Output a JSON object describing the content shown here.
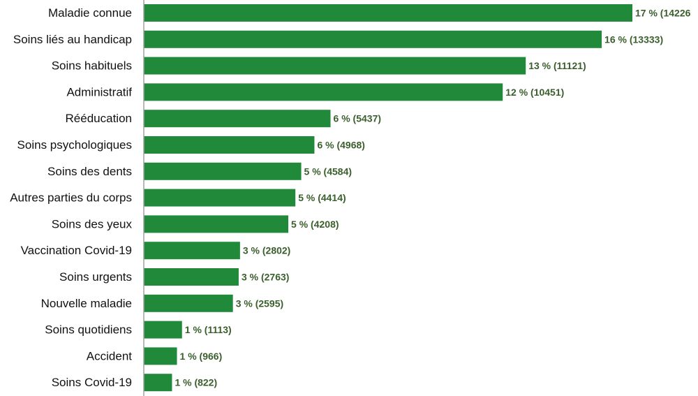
{
  "chart_data": {
    "type": "bar",
    "orientation": "horizontal",
    "title": "",
    "xlabel": "",
    "ylabel": "",
    "xlim": [
      0,
      14226
    ],
    "grid": false,
    "legend": "none",
    "bar_color": "#208a3a",
    "label_color": "#3a5f2c",
    "axis_color": "#a0a0a0",
    "categories": [
      "Maladie connue",
      "Soins liés au handicap",
      "Soins habituels",
      "Administratif",
      "Rééducation",
      "Soins psychologiques",
      "Soins des dents",
      "Autres parties du corps",
      "Soins des yeux",
      "Vaccination Covid-19",
      "Soins urgents",
      "Nouvelle maladie",
      "Soins quotidiens",
      "Accident",
      "Soins Covid-19"
    ],
    "values": [
      14226,
      13333,
      11121,
      10451,
      5437,
      4968,
      4584,
      4414,
      4208,
      2802,
      2763,
      2595,
      1113,
      966,
      822
    ],
    "percent": [
      17,
      16,
      13,
      12,
      6,
      6,
      5,
      5,
      5,
      3,
      3,
      3,
      1,
      1,
      1
    ],
    "data_labels": [
      "17 % (14226",
      "16 % (13333)",
      "13 % (11121)",
      "12 % (10451)",
      "6 % (5437)",
      "6 % (4968)",
      "5 % (4584)",
      "5 % (4414)",
      "5 % (4208)",
      "3 % (2802)",
      "3 % (2763)",
      "3 % (2595)",
      "1 % (1113)",
      "1 % (966)",
      "1 % (822)"
    ]
  }
}
